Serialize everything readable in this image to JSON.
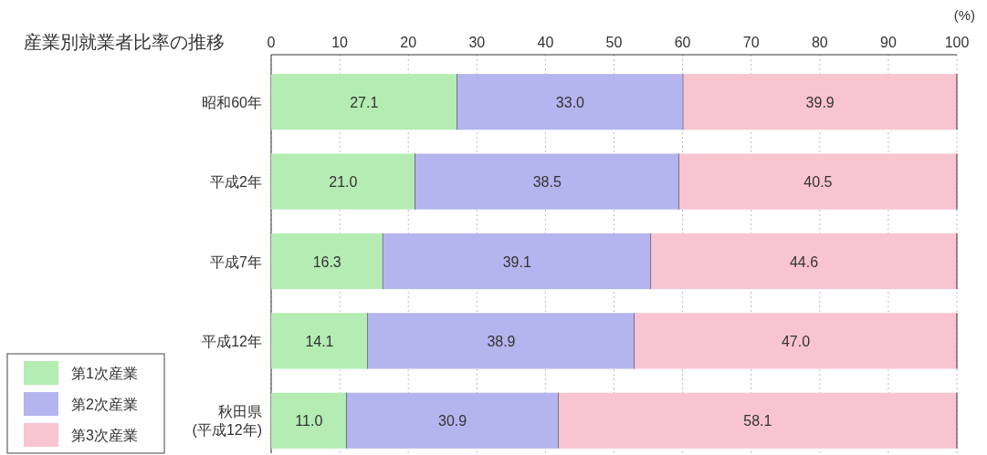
{
  "chart_data": {
    "type": "bar",
    "orientation": "horizontal",
    "stacked": true,
    "title": "産業別就業者比率の推移",
    "xlabel": "(%)",
    "categories": [
      "昭和60年",
      "平成2年",
      "平成7年",
      "平成12年",
      "秋田県\n(平成12年)"
    ],
    "series": [
      {
        "name": "第1次産業",
        "color": "#b4ecb4",
        "values": [
          27.1,
          21.0,
          16.3,
          14.1,
          11.0
        ],
        "value_labels": [
          "27.1",
          "21.0",
          "16.3",
          "14.1",
          "11.0"
        ]
      },
      {
        "name": "第2次産業",
        "color": "#b4b4ee",
        "values": [
          33.0,
          38.5,
          39.1,
          38.9,
          30.9
        ],
        "value_labels": [
          "33.0",
          "38.5",
          "39.1",
          "38.9",
          "30.9"
        ]
      },
      {
        "name": "第3次産業",
        "color": "#f8c4d0",
        "values": [
          39.9,
          40.5,
          44.6,
          47.0,
          58.1
        ],
        "value_labels": [
          "39.9",
          "40.5",
          "44.6",
          "47.0",
          "58.1"
        ]
      }
    ],
    "xlim": [
      0,
      100
    ],
    "xticks": [
      0,
      10,
      20,
      30,
      40,
      50,
      60,
      70,
      80,
      90,
      100
    ],
    "grid": "x",
    "legend": "bottom left"
  }
}
